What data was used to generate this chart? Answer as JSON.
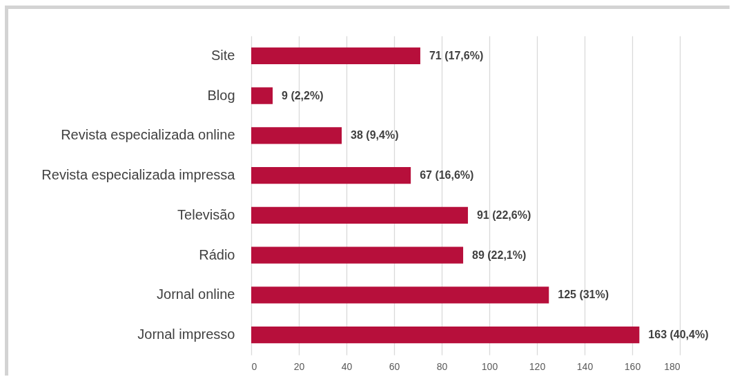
{
  "chart_data": {
    "type": "bar",
    "orientation": "horizontal",
    "categories": [
      "Site",
      "Blog",
      "Revista especializada online",
      "Revista especializada impressa",
      "Televisão",
      "Rádio",
      "Jornal online",
      "Jornal impresso"
    ],
    "values": [
      71,
      9,
      38,
      67,
      91,
      89,
      125,
      163
    ],
    "value_labels": [
      "71 (17,6%)",
      "9 (2,2%)",
      "38 (9,4%)",
      "67 (16,6%)",
      "91 (22,6%)",
      "89 (22,1%)",
      "125 (31%)",
      "163 (40,4%)"
    ],
    "color": "#b70f3b",
    "xlim": [
      0,
      180
    ],
    "xticks": [
      0,
      20,
      40,
      60,
      80,
      100,
      120,
      140,
      160,
      180
    ],
    "grid": "x"
  }
}
